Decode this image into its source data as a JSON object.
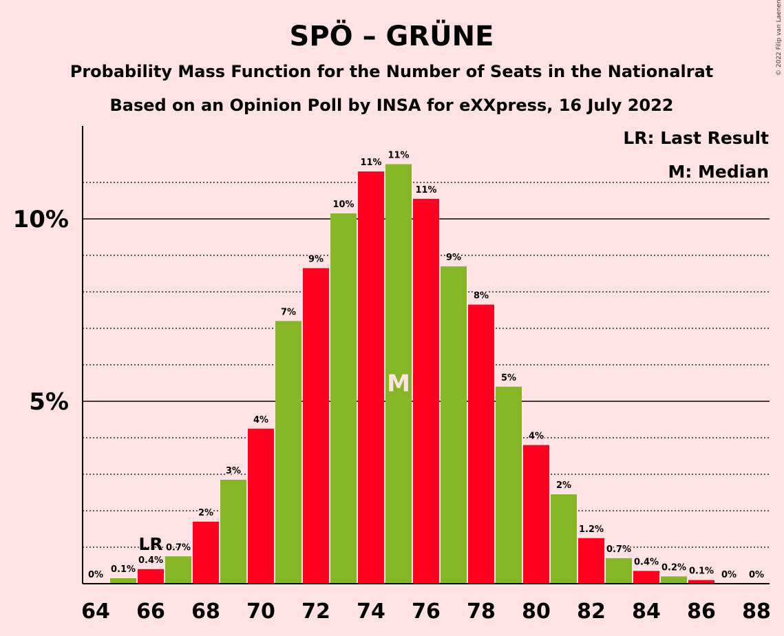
{
  "chart_data": {
    "type": "bar",
    "title": "SPÖ – GRÜNE",
    "subtitle": "Probability Mass Function for the Number of Seats in the Nationalrat",
    "subtitle2": "Based on an Opinion Poll by INSA for eXXpress, 16 July 2022",
    "copyright": "© 2022 Filip van Laenen",
    "legend": [
      "LR: Last Result",
      "M: Median"
    ],
    "y_tick_labels": [
      "5%",
      "10%"
    ],
    "y_tick_values": [
      5,
      10
    ],
    "ylim": [
      0,
      12.5
    ],
    "x_tick_labels": [
      "64",
      "66",
      "68",
      "70",
      "72",
      "74",
      "76",
      "78",
      "80",
      "82",
      "84",
      "86",
      "88"
    ],
    "categories": [
      64,
      65,
      66,
      67,
      68,
      69,
      70,
      71,
      72,
      73,
      74,
      75,
      76,
      77,
      78,
      79,
      80,
      81,
      82,
      83,
      84,
      85,
      86,
      87,
      88
    ],
    "values": [
      0,
      0.15,
      0.4,
      0.75,
      1.7,
      2.85,
      4.25,
      7.2,
      8.65,
      10.15,
      11.3,
      11.5,
      10.55,
      8.7,
      7.65,
      5.4,
      3.8,
      2.45,
      1.25,
      0.7,
      0.35,
      0.2,
      0.1,
      0,
      0
    ],
    "labels": [
      "0%",
      "0.1%",
      "0.4%",
      "0.7%",
      "2%",
      "3%",
      "4%",
      "7%",
      "9%",
      "10%",
      "11%",
      "11%",
      "11%",
      "9%",
      "8%",
      "5%",
      "4%",
      "2%",
      "1.2%",
      "0.7%",
      "0.4%",
      "0.2%",
      "0.1%",
      "0%",
      "0%"
    ],
    "colors": [
      "#FF0020",
      "#86B528"
    ],
    "last_result_seat": 66,
    "last_result_label": "LR",
    "median_seat": 75,
    "median_label": "M",
    "grid": true
  }
}
